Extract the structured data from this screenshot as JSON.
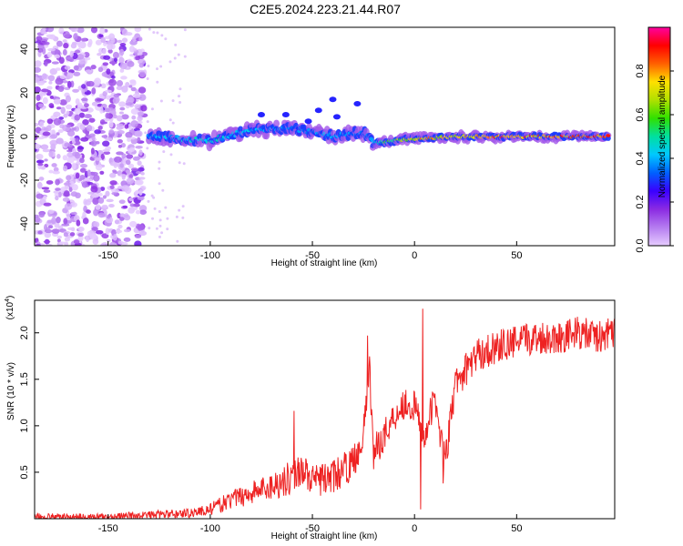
{
  "title": "C2E5.2024.223.21.44.R07",
  "chart_data": [
    {
      "type": "heatmap",
      "title": "C2E5.2024.223.21.44.R07",
      "xlabel": "Height of straight line (km)",
      "ylabel": "Frequency (Hz)",
      "xlim": [
        -186,
        98
      ],
      "ylim": [
        -50,
        50
      ],
      "xticks": [
        -150,
        -100,
        -50,
        0,
        50
      ],
      "xtick_labels": [
        "-150",
        "-100",
        "-50",
        "0",
        "50"
      ],
      "yticks": [
        -40,
        -20,
        0,
        20,
        40
      ],
      "ytick_labels": [
        "-40",
        "-20",
        "0",
        "20",
        "40"
      ],
      "colormap": [
        "#e6ccff",
        "#b57cf0",
        "#8b2be2",
        "#3a00ff",
        "#0060ff",
        "#00c8ff",
        "#00e0a0",
        "#30e000",
        "#b0e000",
        "#ffe000",
        "#ff6000",
        "#ff0000",
        "#ff00a0"
      ],
      "colorbar": {
        "label": "Normalized spectral amplitude",
        "range": [
          0,
          1
        ],
        "ticks": [
          0.0,
          0.2,
          0.4,
          0.6,
          0.8
        ],
        "tick_labels": [
          "0.0",
          "0.2",
          "0.4",
          "0.6",
          "0.8"
        ]
      },
      "trace": [
        {
          "x": -130,
          "f": 0,
          "amp": 0.4
        },
        {
          "x": -100,
          "f": -2,
          "amp": 0.45
        },
        {
          "x": -80,
          "f": 3,
          "amp": 0.4
        },
        {
          "x": -60,
          "f": 4,
          "amp": 0.35
        },
        {
          "x": -40,
          "f": 0,
          "amp": 0.4
        },
        {
          "x": -25,
          "f": 2,
          "amp": 0.35
        },
        {
          "x": -20,
          "f": -3,
          "amp": 0.45
        },
        {
          "x": 0,
          "f": -1,
          "amp": 0.75
        },
        {
          "x": 25,
          "f": 0,
          "amp": 0.8
        },
        {
          "x": 50,
          "f": 0,
          "amp": 0.85
        },
        {
          "x": 75,
          "f": 0,
          "amp": 0.85
        },
        {
          "x": 95,
          "f": 0,
          "amp": 0.85
        }
      ],
      "noise_region_x": [
        -186,
        -132
      ]
    },
    {
      "type": "line",
      "xlabel": "Height of straight line (km)",
      "ylabel": "SNR (10 * v/v)",
      "yscale_label": "(x10",
      "yscale_exp": "4",
      "yscale_close": ")",
      "xlim": [
        -186,
        98
      ],
      "ylim": [
        0,
        2.35
      ],
      "xticks": [
        -150,
        -100,
        -50,
        0,
        50
      ],
      "xtick_labels": [
        "-150",
        "-100",
        "-50",
        "0",
        "50"
      ],
      "yticks": [
        0.5,
        1.0,
        1.5,
        2.0
      ],
      "ytick_labels": [
        "0.5",
        "1.0",
        "1.5",
        "2.0"
      ],
      "color": "#ee2222",
      "series": [
        {
          "name": "SNR",
          "x": [
            -186,
            -150,
            -130,
            -110,
            -100,
            -90,
            -80,
            -70,
            -60,
            -55,
            -50,
            -40,
            -30,
            -25,
            -22,
            -20,
            -15,
            -10,
            -5,
            0,
            5,
            10,
            15,
            20,
            25,
            30,
            40,
            50,
            60,
            70,
            80,
            90,
            98
          ],
          "y": [
            0.02,
            0.02,
            0.04,
            0.06,
            0.1,
            0.2,
            0.28,
            0.35,
            0.45,
            0.55,
            0.4,
            0.45,
            0.6,
            0.9,
            1.6,
            0.7,
            0.9,
            1.1,
            1.25,
            1.2,
            0.9,
            1.3,
            0.6,
            1.45,
            1.6,
            1.75,
            1.85,
            1.9,
            1.95,
            1.95,
            2.0,
            1.95,
            2.0
          ]
        }
      ],
      "peaks": [
        {
          "x": -59,
          "y": 1.16
        },
        {
          "x": -23,
          "y": 1.97
        },
        {
          "x": 4,
          "y": 2.26
        },
        {
          "x": 3,
          "y": 0.1
        },
        {
          "x": 14,
          "y": 0.38
        }
      ],
      "noise_amplitude": 0.18
    }
  ]
}
